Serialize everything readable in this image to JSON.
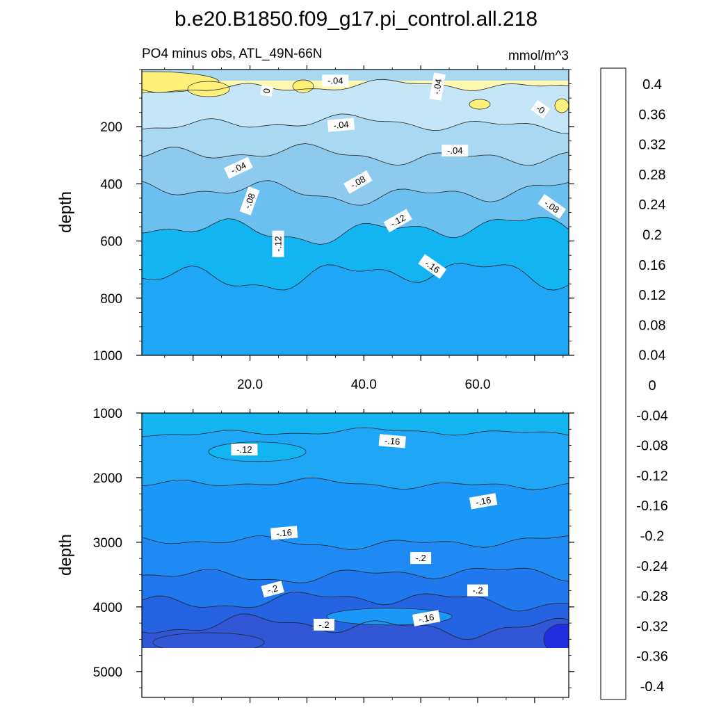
{
  "chart_data": {
    "type": "heatmap",
    "title": "b.e20.B1850.f09_g17.pi_control.all.218",
    "subtitle_left": "PO4 minus obs, ATL_49N-66N",
    "subtitle_right": "mmol/m^3",
    "panels": [
      {
        "name": "upper",
        "ylabel": "depth",
        "ylim": [
          1000,
          0
        ],
        "xlim": [
          1,
          76
        ],
        "y_ticks": [
          "200",
          "400",
          "600",
          "800",
          "1000"
        ],
        "x_ticks": [
          "20.0",
          "40.0",
          "60.0"
        ],
        "contour_labels": [
          {
            "text": "-.04",
            "x": 35,
            "y": 40,
            "angle": 0
          },
          {
            "text": "-.04",
            "x": 53,
            "y": 60,
            "angle": -80
          },
          {
            "text": "0",
            "x": 23,
            "y": 75,
            "angle": -80
          },
          {
            "text": "-0",
            "x": 71,
            "y": 140,
            "angle": 35
          },
          {
            "text": "-.04",
            "x": 36,
            "y": 195,
            "angle": -5
          },
          {
            "text": "-.04",
            "x": 56,
            "y": 285,
            "angle": 0
          },
          {
            "text": "-.04",
            "x": 18,
            "y": 345,
            "angle": -25
          },
          {
            "text": "-.08",
            "x": 39,
            "y": 395,
            "angle": -30
          },
          {
            "text": "-.08",
            "x": 20,
            "y": 460,
            "angle": -70
          },
          {
            "text": "-.08",
            "x": 73,
            "y": 480,
            "angle": 35
          },
          {
            "text": "-.12",
            "x": 46,
            "y": 530,
            "angle": -30
          },
          {
            "text": "-.12",
            "x": 25,
            "y": 610,
            "angle": -90
          },
          {
            "text": "-.16",
            "x": 52,
            "y": 690,
            "angle": 35
          }
        ]
      },
      {
        "name": "lower",
        "ylabel": "depth",
        "ylim": [
          5400,
          1000
        ],
        "xlim": [
          1,
          76
        ],
        "data_bottom": 4620,
        "y_ticks": [
          "1000",
          "2000",
          "3000",
          "4000",
          "5000"
        ],
        "contour_labels": [
          {
            "text": "-.12",
            "x": 19,
            "y": 1570,
            "angle": 0
          },
          {
            "text": "-.16",
            "x": 45,
            "y": 1440,
            "angle": 5
          },
          {
            "text": "-.16",
            "x": 61,
            "y": 2370,
            "angle": -10
          },
          {
            "text": "-.16",
            "x": 26,
            "y": 2860,
            "angle": -5
          },
          {
            "text": "-.2",
            "x": 50,
            "y": 3250,
            "angle": 0
          },
          {
            "text": "-.2",
            "x": 24,
            "y": 3730,
            "angle": -15
          },
          {
            "text": "-.2",
            "x": 60,
            "y": 3750,
            "angle": 0
          },
          {
            "text": "-.2",
            "x": 33,
            "y": 4280,
            "angle": 0
          },
          {
            "text": "-.16",
            "x": 51,
            "y": 4180,
            "angle": -10
          }
        ]
      }
    ],
    "colorbar": {
      "labels": [
        "0.4",
        "0.36",
        "0.32",
        "0.28",
        "0.24",
        "0.2",
        "0.16",
        "0.12",
        "0.08",
        "0.04",
        "0",
        "-0.04",
        "-0.08",
        "-0.12",
        "-0.16",
        "-0.2",
        "-0.24",
        "-0.28",
        "-0.32",
        "-0.36",
        "-0.4"
      ],
      "colors": [
        "#ffb3b3",
        "#f07f7f",
        "#e24848",
        "#cc0a0a",
        "#d60000",
        "#e60000",
        "#f51a00",
        "#ff4000",
        "#ff5f00",
        "#ff7a00",
        "#ff8e00",
        "#ffa000",
        "#ffb000",
        "#ffc300",
        "#ffd71e",
        "#ffe84a",
        "#fff07a",
        "#fff8b0",
        "#c4e6f7",
        "#a9d9f2",
        "#8ecaee",
        "#6cc0f0",
        "#12b5f2",
        "#1fa6f7",
        "#1b98f7",
        "#1f8af4",
        "#2078ee",
        "#2563e2",
        "#3157d6",
        "#2a40e8",
        "#0a1ff2",
        "#0000ee",
        "#2b13e6",
        "#5a1ce6",
        "#8a20ee"
      ]
    },
    "colors": {
      "upper_fill": [
        "#fff8b0",
        "#c4e6f7",
        "#a9d9f2",
        "#8ecaee",
        "#6cc0f0",
        "#12b5f2",
        "#1fa6f7"
      ],
      "lower_fill": [
        "#12b5f2",
        "#1fa6f7",
        "#1b98f7",
        "#1f8af4",
        "#2078ee",
        "#2563e2",
        "#3157d6"
      ]
    }
  }
}
